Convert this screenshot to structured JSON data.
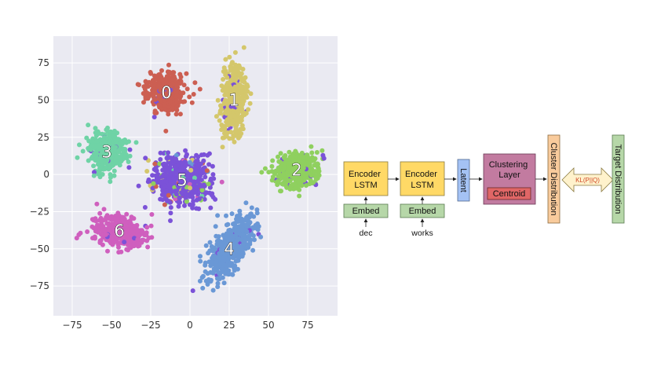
{
  "scatter": {
    "x_ticks": [
      "−75",
      "−50",
      "−25",
      "0",
      "25",
      "50",
      "75"
    ],
    "y_ticks": [
      "75",
      "50",
      "25",
      "0",
      "−25",
      "−50",
      "−75"
    ],
    "x_tick_values": [
      -75,
      -50,
      -25,
      0,
      25,
      50,
      75
    ],
    "y_tick_values": [
      75,
      50,
      25,
      0,
      -25,
      -50,
      -75
    ],
    "xlim": [
      -87,
      94
    ],
    "ylim": [
      -95,
      93
    ],
    "grid": true,
    "clusters": [
      {
        "label": "0",
        "color": "#cc5f52",
        "cx": -15,
        "cy": 55
      },
      {
        "label": "1",
        "color": "#d4c76b",
        "cx": 28,
        "cy": 50
      },
      {
        "label": "2",
        "color": "#8fd05f",
        "cx": 68,
        "cy": 3
      },
      {
        "label": "3",
        "color": "#6fd3a6",
        "cx": -53,
        "cy": 15
      },
      {
        "label": "4",
        "color": "#6a98d6",
        "cx": 25,
        "cy": -50
      },
      {
        "label": "5",
        "color": "#7b52d8",
        "cx": -5,
        "cy": -4
      },
      {
        "label": "6",
        "color": "#cf5fbe",
        "cx": -45,
        "cy": -38
      }
    ]
  },
  "diagram": {
    "encoder1": "Encoder\nLSTM",
    "encoder2": "Encoder\nLSTM",
    "embed1": "Embed",
    "embed2": "Embed",
    "input1": "dec",
    "input2": "works",
    "latent": "Latent",
    "clustering": "Clustering\nLayer",
    "centroid": "Centroid",
    "cluster_dist": "Cluster Distribution",
    "kl": "KL(P||Q)",
    "target_dist": "Target Distribution",
    "colors": {
      "encoder": "#ffd966",
      "embed": "#b6d7a8",
      "latent": "#a4c2f4",
      "clustering": "#c27ba0",
      "centroid": "#e06666",
      "cluster_dist": "#f9cb9c",
      "kl_arrow": "#fff2cc",
      "target_dist": "#b6d7a8"
    }
  }
}
